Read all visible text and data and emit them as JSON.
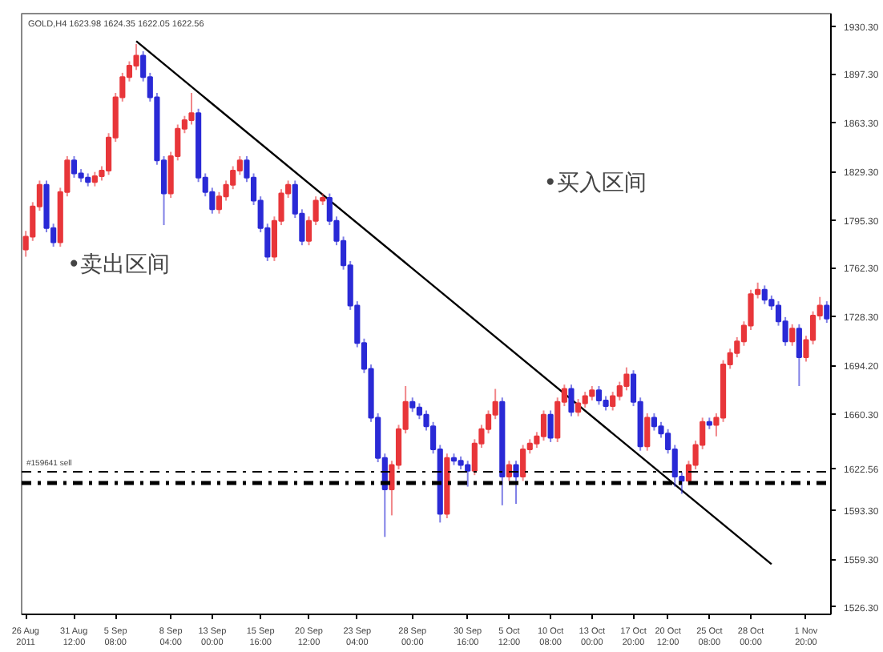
{
  "chart_data": {
    "type": "candlestick",
    "title": "GOLD,H4 1623.98 1624.35 1622.05 1622.56",
    "categories": [
      "26 Aug 2011",
      null,
      null,
      null,
      null,
      null,
      null,
      "31 Aug 12:00",
      null,
      null,
      null,
      null,
      null,
      "5 Sep 08:00",
      null,
      null,
      null,
      null,
      null,
      null,
      null,
      "8 Sep 04:00",
      null,
      null,
      null,
      null,
      null,
      "13 Sep 00:00",
      null,
      null,
      null,
      null,
      null,
      null,
      "15 Sep 16:00",
      null,
      null,
      null,
      null,
      null,
      null,
      "20 Sep 12:00",
      null,
      null,
      null,
      null,
      null,
      null,
      "23 Sep 04:00",
      null,
      null,
      null,
      null,
      null,
      null,
      null,
      "28 Sep 00:00",
      null,
      null,
      null,
      null,
      null,
      null,
      null,
      "30 Sep 16:00",
      null,
      null,
      null,
      null,
      null,
      "5 Oct 12:00",
      null,
      null,
      null,
      null,
      null,
      "10 Oct 08:00",
      null,
      null,
      null,
      null,
      null,
      "13 Oct 00:00",
      null,
      null,
      null,
      null,
      null,
      "17 Oct 20:00",
      null,
      null,
      null,
      null,
      "20 Oct 12:00",
      null,
      null,
      null,
      null,
      null,
      "25 Oct 08:00",
      null,
      null,
      null,
      null,
      null,
      "28 Oct 00:00",
      null,
      null,
      null,
      null,
      null,
      null,
      null,
      "1 Nov 20:00",
      null,
      null,
      null
    ],
    "ohlc": [
      [
        1775,
        1788,
        1770,
        1784
      ],
      [
        1784,
        1808,
        1781,
        1805
      ],
      [
        1805,
        1823,
        1802,
        1820
      ],
      [
        1820,
        1823,
        1787,
        1790
      ],
      [
        1790,
        1793,
        1777,
        1780
      ],
      [
        1780,
        1818,
        1777,
        1815
      ],
      [
        1815,
        1840,
        1812,
        1837
      ],
      [
        1837,
        1840,
        1825,
        1828
      ],
      [
        1828,
        1831,
        1822,
        1825
      ],
      [
        1825,
        1828,
        1819,
        1822
      ],
      [
        1822,
        1829,
        1819,
        1826
      ],
      [
        1826,
        1833,
        1823,
        1830
      ],
      [
        1830,
        1856,
        1827,
        1853
      ],
      [
        1853,
        1884,
        1850,
        1881
      ],
      [
        1881,
        1898,
        1878,
        1895
      ],
      [
        1895,
        1906,
        1892,
        1903
      ],
      [
        1903,
        1918,
        1900,
        1910
      ],
      [
        1910,
        1913,
        1892,
        1895
      ],
      [
        1895,
        1898,
        1878,
        1881
      ],
      [
        1881,
        1884,
        1834,
        1837
      ],
      [
        1837,
        1840,
        1792,
        1814
      ],
      [
        1814,
        1843,
        1811,
        1840
      ],
      [
        1840,
        1862,
        1837,
        1859
      ],
      [
        1859,
        1868,
        1856,
        1865
      ],
      [
        1865,
        1884,
        1862,
        1870
      ],
      [
        1870,
        1873,
        1822,
        1825
      ],
      [
        1825,
        1828,
        1812,
        1815
      ],
      [
        1815,
        1818,
        1800,
        1803
      ],
      [
        1803,
        1815,
        1800,
        1812
      ],
      [
        1812,
        1823,
        1809,
        1820
      ],
      [
        1820,
        1833,
        1817,
        1830
      ],
      [
        1830,
        1840,
        1827,
        1837
      ],
      [
        1837,
        1840,
        1822,
        1825
      ],
      [
        1825,
        1828,
        1806,
        1809
      ],
      [
        1809,
        1812,
        1787,
        1790
      ],
      [
        1790,
        1793,
        1767,
        1770
      ],
      [
        1770,
        1798,
        1767,
        1795
      ],
      [
        1795,
        1817,
        1792,
        1814
      ],
      [
        1814,
        1823,
        1811,
        1820
      ],
      [
        1820,
        1823,
        1797,
        1800
      ],
      [
        1800,
        1803,
        1778,
        1781
      ],
      [
        1781,
        1798,
        1778,
        1795
      ],
      [
        1795,
        1812,
        1792,
        1809
      ],
      [
        1809,
        1814,
        1806,
        1811
      ],
      [
        1811,
        1814,
        1792,
        1795
      ],
      [
        1795,
        1798,
        1778,
        1781
      ],
      [
        1781,
        1784,
        1761,
        1764
      ],
      [
        1764,
        1767,
        1733,
        1736
      ],
      [
        1736,
        1739,
        1707,
        1710
      ],
      [
        1710,
        1713,
        1689,
        1692
      ],
      [
        1692,
        1695,
        1655,
        1658
      ],
      [
        1658,
        1661,
        1627,
        1630
      ],
      [
        1630,
        1633,
        1575,
        1608
      ],
      [
        1608,
        1628,
        1590,
        1625
      ],
      [
        1625,
        1653,
        1622,
        1650
      ],
      [
        1650,
        1680,
        1647,
        1669
      ],
      [
        1669,
        1672,
        1662,
        1665
      ],
      [
        1665,
        1668,
        1657,
        1660
      ],
      [
        1660,
        1663,
        1649,
        1652
      ],
      [
        1652,
        1655,
        1633,
        1636
      ],
      [
        1636,
        1639,
        1585,
        1591
      ],
      [
        1591,
        1633,
        1588,
        1630
      ],
      [
        1630,
        1633,
        1625,
        1628
      ],
      [
        1628,
        1631,
        1622,
        1625
      ],
      [
        1625,
        1628,
        1610,
        1621
      ],
      [
        1621,
        1643,
        1618,
        1640
      ],
      [
        1640,
        1653,
        1637,
        1650
      ],
      [
        1650,
        1663,
        1647,
        1660
      ],
      [
        1660,
        1678,
        1657,
        1669
      ],
      [
        1669,
        1672,
        1597,
        1617
      ],
      [
        1617,
        1628,
        1614,
        1625
      ],
      [
        1625,
        1628,
        1598,
        1617
      ],
      [
        1617,
        1639,
        1614,
        1636
      ],
      [
        1636,
        1643,
        1633,
        1640
      ],
      [
        1640,
        1648,
        1637,
        1645
      ],
      [
        1645,
        1663,
        1642,
        1660
      ],
      [
        1660,
        1663,
        1641,
        1644
      ],
      [
        1644,
        1672,
        1641,
        1669
      ],
      [
        1669,
        1681,
        1666,
        1678
      ],
      [
        1678,
        1681,
        1659,
        1662
      ],
      [
        1662,
        1671,
        1659,
        1668
      ],
      [
        1668,
        1676,
        1665,
        1673
      ],
      [
        1673,
        1680,
        1670,
        1677
      ],
      [
        1677,
        1680,
        1667,
        1670
      ],
      [
        1670,
        1673,
        1663,
        1666
      ],
      [
        1666,
        1676,
        1663,
        1673
      ],
      [
        1673,
        1683,
        1670,
        1680
      ],
      [
        1680,
        1693,
        1677,
        1688
      ],
      [
        1688,
        1691,
        1666,
        1669
      ],
      [
        1669,
        1672,
        1635,
        1638
      ],
      [
        1638,
        1661,
        1635,
        1658
      ],
      [
        1658,
        1661,
        1649,
        1652
      ],
      [
        1652,
        1655,
        1644,
        1647
      ],
      [
        1647,
        1650,
        1633,
        1636
      ],
      [
        1636,
        1639,
        1610,
        1617
      ],
      [
        1617,
        1620,
        1605,
        1614
      ],
      [
        1614,
        1628,
        1611,
        1625
      ],
      [
        1625,
        1642,
        1622,
        1639
      ],
      [
        1639,
        1658,
        1636,
        1655
      ],
      [
        1655,
        1658,
        1650,
        1653
      ],
      [
        1653,
        1661,
        1645,
        1658
      ],
      [
        1658,
        1698,
        1655,
        1695
      ],
      [
        1695,
        1706,
        1692,
        1703
      ],
      [
        1703,
        1714,
        1700,
        1711
      ],
      [
        1711,
        1725,
        1708,
        1722
      ],
      [
        1722,
        1747,
        1719,
        1744
      ],
      [
        1744,
        1752,
        1741,
        1747
      ],
      [
        1747,
        1750,
        1737,
        1740
      ],
      [
        1740,
        1743,
        1733,
        1736
      ],
      [
        1736,
        1739,
        1722,
        1725
      ],
      [
        1725,
        1728,
        1708,
        1711
      ],
      [
        1711,
        1723,
        1708,
        1720
      ],
      [
        1720,
        1723,
        1680,
        1700
      ],
      [
        1700,
        1715,
        1697,
        1712
      ],
      [
        1712,
        1732,
        1709,
        1729
      ],
      [
        1729,
        1742,
        1726,
        1736
      ],
      [
        1736,
        1739,
        1724,
        1727
      ]
    ],
    "colors": [
      "#e8363a",
      "#e8363a",
      "#e8363a",
      "#2a2ad6",
      "#2a2ad6",
      "#e8363a",
      "#e8363a",
      "#2a2ad6",
      "#2a2ad6",
      "#2a2ad6",
      "#e8363a",
      "#e8363a",
      "#e8363a",
      "#e8363a",
      "#e8363a",
      "#e8363a",
      "#e8363a",
      "#2a2ad6",
      "#2a2ad6",
      "#2a2ad6",
      "#2a2ad6",
      "#e8363a",
      "#e8363a",
      "#e8363a",
      "#e8363a",
      "#2a2ad6",
      "#2a2ad6",
      "#2a2ad6",
      "#e8363a",
      "#e8363a",
      "#e8363a",
      "#e8363a",
      "#2a2ad6",
      "#2a2ad6",
      "#2a2ad6",
      "#2a2ad6",
      "#e8363a",
      "#e8363a",
      "#e8363a",
      "#2a2ad6",
      "#2a2ad6",
      "#e8363a",
      "#e8363a",
      "#e8363a",
      "#2a2ad6",
      "#2a2ad6",
      "#2a2ad6",
      "#2a2ad6",
      "#2a2ad6",
      "#2a2ad6",
      "#2a2ad6",
      "#2a2ad6",
      "#2a2ad6",
      "#e8363a",
      "#e8363a",
      "#e8363a",
      "#2a2ad6",
      "#2a2ad6",
      "#2a2ad6",
      "#2a2ad6",
      "#2a2ad6",
      "#e8363a",
      "#2a2ad6",
      "#2a2ad6",
      "#2a2ad6",
      "#e8363a",
      "#e8363a",
      "#e8363a",
      "#e8363a",
      "#2a2ad6",
      "#e8363a",
      "#2a2ad6",
      "#e8363a",
      "#e8363a",
      "#e8363a",
      "#e8363a",
      "#2a2ad6",
      "#e8363a",
      "#e8363a",
      "#2a2ad6",
      "#e8363a",
      "#e8363a",
      "#e8363a",
      "#2a2ad6",
      "#2a2ad6",
      "#e8363a",
      "#e8363a",
      "#e8363a",
      "#2a2ad6",
      "#2a2ad6",
      "#e8363a",
      "#2a2ad6",
      "#2a2ad6",
      "#2a2ad6",
      "#2a2ad6",
      "#2a2ad6",
      "#e8363a",
      "#e8363a",
      "#e8363a",
      "#2a2ad6",
      "#e8363a",
      "#e8363a",
      "#e8363a",
      "#e8363a",
      "#e8363a",
      "#e8363a",
      "#e8363a",
      "#2a2ad6",
      "#2a2ad6",
      "#2a2ad6",
      "#2a2ad6",
      "#e8363a",
      "#2a2ad6",
      "#e8363a",
      "#e8363a",
      "#e8363a",
      "#2a2ad6"
    ],
    "series": [
      {
        "type": "line",
        "color": "#000000",
        "values": [
          null,
          null,
          null,
          null,
          null,
          null,
          null,
          null,
          null,
          null,
          null,
          null,
          null,
          null,
          null,
          null,
          1920,
          null,
          null,
          null,
          null,
          null,
          null,
          null,
          null,
          null,
          null,
          null,
          null,
          null,
          null,
          null,
          null,
          null,
          null,
          null,
          null,
          null,
          null,
          null,
          null,
          null,
          null,
          null,
          null,
          null,
          null,
          null,
          null,
          null,
          null,
          null,
          null,
          null,
          null,
          null,
          null,
          null,
          null,
          null,
          null,
          null,
          null,
          null,
          null,
          null,
          null,
          null,
          null,
          null,
          null,
          null,
          null,
          null,
          null,
          null,
          null,
          null,
          null,
          null,
          null,
          null,
          null,
          null,
          null,
          null,
          null,
          null,
          null,
          null,
          null,
          null,
          null,
          null,
          null,
          null,
          null,
          null,
          null,
          null,
          null,
          null,
          null,
          null,
          null,
          null,
          null,
          null,
          1556,
          null,
          null,
          null,
          null,
          null,
          null,
          null,
          null
        ]
      }
    ],
    "ylim": [
      1521.1,
      1939.2
    ],
    "yticks": [
      {
        "value": 1930.3,
        "label": "1930.30"
      },
      {
        "value": 1897.3,
        "label": "1897.30"
      },
      {
        "value": 1863.3,
        "label": "1863.30"
      },
      {
        "value": 1829.3,
        "label": "1829.30"
      },
      {
        "value": 1795.3,
        "label": "1795.30"
      },
      {
        "value": 1762.3,
        "label": "1762.30"
      },
      {
        "value": 1728.3,
        "label": "1728.30"
      },
      {
        "value": 1694.2,
        "label": "1694.20"
      },
      {
        "value": 1660.3,
        "label": "1660.30"
      },
      {
        "value": 1622.56,
        "label": "1622.56"
      },
      {
        "value": 1593.3,
        "label": "1593.30"
      },
      {
        "value": 1559.3,
        "label": "1559.30"
      },
      {
        "value": 1526.3,
        "label": "1526.30"
      }
    ],
    "ref_lines": [
      {
        "axis": "y",
        "value": 1620.3,
        "label": "#159641 sell",
        "color": "#000000",
        "line_style": "dashdot"
      },
      {
        "axis": "y",
        "value": 1612.5,
        "color": "#000000",
        "line_style": "dashdot"
      }
    ],
    "annotations": [
      "•卖出区间",
      "•买入区间"
    ],
    "grid": false
  }
}
